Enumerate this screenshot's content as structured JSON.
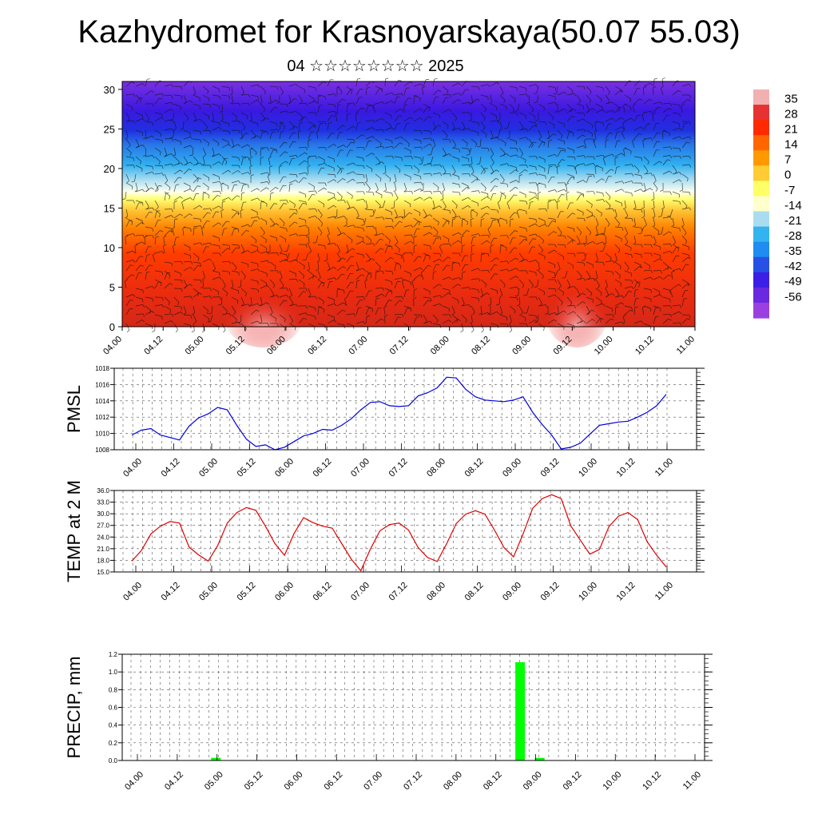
{
  "title": "Kazhydromet for Krasnoyarskaya(50.07 55.03)",
  "subtitle": "04 ☆☆☆☆☆☆☆☆ 2025",
  "colors": {
    "pmsl_line": "#0000dd",
    "temp_line": "#dd0000",
    "precip_bar": "#00ff00",
    "colorbar": [
      "#f2b0b0",
      "#e63232",
      "#ff2a00",
      "#ff6600",
      "#ff9900",
      "#ffcc33",
      "#ffff66",
      "#ffffcc",
      "#aadcf0",
      "#33b4f0",
      "#1e8cf0",
      "#2850e6",
      "#3c1ee6",
      "#6a28e0",
      "#9a40e0"
    ]
  },
  "chart_data": [
    {
      "type": "heatmap",
      "name": "cross-section",
      "ylim": [
        0,
        31
      ],
      "yticks": [
        "0",
        "5",
        "10",
        "15",
        "20",
        "25",
        "30"
      ],
      "xticks": [
        "04.00",
        "04.12",
        "05.00",
        "05.12",
        "06.00",
        "06.12",
        "07.00",
        "07.12",
        "08.00",
        "08.12",
        "09.00",
        "09.12",
        "10.00",
        "10.12",
        "11.00"
      ],
      "colorbar_labels": [
        "35",
        "28",
        "21",
        "14",
        "7",
        "0",
        "-7",
        "-14",
        "-21",
        "-28",
        "-35",
        "-42",
        "-49",
        "-56"
      ]
    },
    {
      "type": "line",
      "ylabel": "PMSL",
      "ylim": [
        1008,
        1018
      ],
      "yticks": [
        "1008",
        "1010",
        "1012",
        "1014",
        "1016",
        "1018"
      ],
      "xticks": [
        "04.00",
        "04.12",
        "05.00",
        "05.12",
        "06.00",
        "06.12",
        "07.00",
        "07.12",
        "08.00",
        "08.12",
        "09.00",
        "09.12",
        "10.00",
        "10.12",
        "11.00"
      ],
      "x": [
        0,
        1,
        2,
        3,
        4,
        5,
        6,
        7,
        8,
        9,
        10,
        11,
        12,
        13,
        14,
        15,
        16,
        17,
        18,
        19,
        20,
        21,
        22,
        23,
        24,
        25,
        26,
        27,
        28,
        29,
        30,
        31,
        32,
        33,
        34,
        35,
        36,
        37,
        38,
        39,
        40,
        41,
        42,
        43,
        44,
        45,
        46,
        47,
        48,
        49,
        50,
        51,
        52,
        53,
        54,
        55,
        56
      ],
      "values": [
        1009.8,
        1010.4,
        1010.6,
        1009.8,
        1009.5,
        1009.2,
        1010.9,
        1011.9,
        1012.4,
        1013.2,
        1012.9,
        1011.0,
        1009.3,
        1008.4,
        1008.6,
        1008.0,
        1008.3,
        1009.0,
        1009.7,
        1010.0,
        1010.5,
        1010.4,
        1011.0,
        1011.8,
        1012.9,
        1013.8,
        1013.9,
        1013.4,
        1013.3,
        1013.4,
        1014.6,
        1015.0,
        1015.6,
        1016.9,
        1016.8,
        1015.4,
        1014.5,
        1014.1,
        1014.0,
        1013.9,
        1014.1,
        1014.5,
        1012.6,
        1011.1,
        1009.8,
        1008.1,
        1008.3,
        1008.8,
        1009.9,
        1011.0,
        1011.2,
        1011.4,
        1011.5,
        1012.0,
        1012.6,
        1013.4,
        1014.8
      ]
    },
    {
      "type": "line",
      "ylabel": "TEMP at 2 M",
      "ylim": [
        15,
        36
      ],
      "yticks": [
        "15.0",
        "18.0",
        "21.0",
        "24.0",
        "27.0",
        "30.0",
        "33.0",
        "36.0"
      ],
      "xticks": [
        "04.00",
        "04.12",
        "05.00",
        "05.12",
        "06.00",
        "06.12",
        "07.00",
        "07.12",
        "08.00",
        "08.12",
        "09.00",
        "09.12",
        "10.00",
        "10.12",
        "11.00"
      ],
      "x": [
        0,
        1,
        2,
        3,
        4,
        5,
        6,
        7,
        8,
        9,
        10,
        11,
        12,
        13,
        14,
        15,
        16,
        17,
        18,
        19,
        20,
        21,
        22,
        23,
        24,
        25,
        26,
        27,
        28,
        29,
        30,
        31,
        32,
        33,
        34,
        35,
        36,
        37,
        38,
        39,
        40,
        41,
        42,
        43,
        44,
        45,
        46,
        47,
        48,
        49,
        50,
        51,
        52,
        53,
        54,
        55,
        56
      ],
      "values": [
        17.8,
        20.5,
        24.8,
        26.8,
        28.0,
        27.6,
        21.4,
        19.4,
        17.8,
        21.8,
        27.6,
        30.3,
        31.6,
        30.9,
        26.8,
        22.3,
        19.3,
        24.9,
        29.0,
        27.7,
        26.8,
        26.3,
        22.3,
        18.3,
        15.3,
        20.9,
        25.6,
        27.2,
        27.6,
        25.8,
        21.3,
        18.7,
        17.7,
        22.3,
        27.5,
        29.9,
        30.8,
        29.9,
        25.8,
        21.3,
        18.9,
        24.8,
        31.4,
        33.9,
        34.9,
        33.9,
        26.9,
        23.2,
        19.6,
        20.8,
        26.7,
        29.4,
        30.3,
        28.5,
        22.8,
        19.3,
        16.3
      ]
    },
    {
      "type": "bar",
      "ylabel": "PRECIP, mm",
      "ylim": [
        0,
        1.2
      ],
      "yticks": [
        "0.0",
        "0.2",
        "0.4",
        "0.6",
        "0.8",
        "1.0",
        "1.2"
      ],
      "xticks": [
        "04.00",
        "04.12",
        "05.00",
        "05.12",
        "06.00",
        "06.12",
        "07.00",
        "07.12",
        "08.00",
        "08.12",
        "09.00",
        "09.12",
        "10.00",
        "10.12",
        "11.00"
      ],
      "x": [
        4,
        19.5,
        20.5
      ],
      "values": [
        0.03,
        1.11,
        0.03
      ]
    }
  ]
}
